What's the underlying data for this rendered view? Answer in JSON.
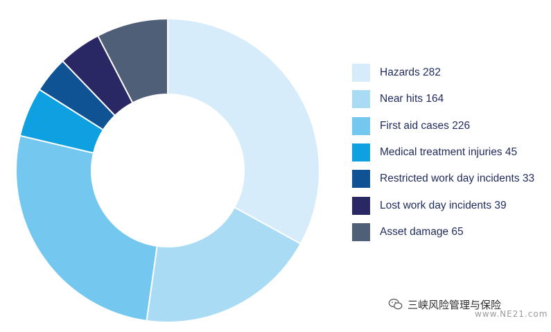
{
  "chart_data": {
    "type": "pie",
    "donut": true,
    "categories": [
      "Hazards",
      "Near hits",
      "First aid cases",
      "Medical treatment injuries",
      "Restricted work day incidents",
      "Lost work day incidents",
      "Asset damage"
    ],
    "values": [
      282,
      164,
      226,
      45,
      33,
      39,
      65
    ],
    "colors": [
      "#d6ecfa",
      "#a9dbf5",
      "#74c8f0",
      "#0ea0e0",
      "#0f5394",
      "#2a2864",
      "#4f5f78"
    ],
    "legend_labels": [
      "Hazards 282",
      "Near hits 164",
      "First aid cases 226",
      "Medical treatment injuries 45",
      "Restricted work day incidents 33",
      "Lost work day incidents 39",
      "Asset damage 65"
    ],
    "legend_position": "right"
  },
  "watermark": {
    "text": "三峡风险管理与保险",
    "subtext": "www.NE21.com",
    "icon": "wechat-icon"
  }
}
